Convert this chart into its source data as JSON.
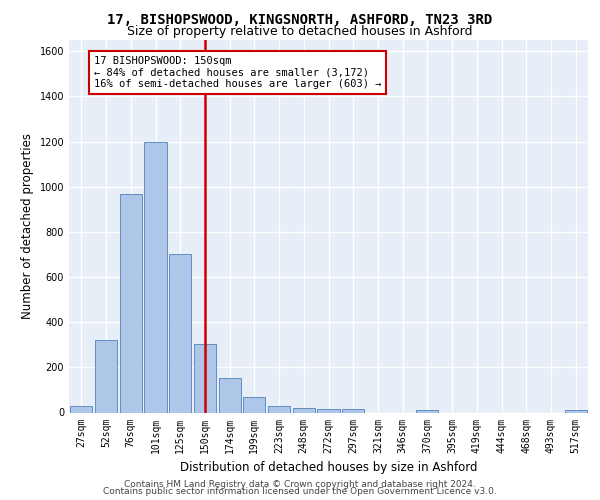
{
  "title1": "17, BISHOPSWOOD, KINGSNORTH, ASHFORD, TN23 3RD",
  "title2": "Size of property relative to detached houses in Ashford",
  "xlabel": "Distribution of detached houses by size in Ashford",
  "ylabel": "Number of detached properties",
  "categories": [
    "27sqm",
    "52sqm",
    "76sqm",
    "101sqm",
    "125sqm",
    "150sqm",
    "174sqm",
    "199sqm",
    "223sqm",
    "248sqm",
    "272sqm",
    "297sqm",
    "321sqm",
    "346sqm",
    "370sqm",
    "395sqm",
    "419sqm",
    "444sqm",
    "468sqm",
    "493sqm",
    "517sqm"
  ],
  "values": [
    30,
    320,
    970,
    1200,
    700,
    305,
    155,
    70,
    30,
    20,
    15,
    15,
    0,
    0,
    10,
    0,
    0,
    0,
    0,
    0,
    10
  ],
  "bar_color": "#aec6e8",
  "bar_edge_color": "#4f81bd",
  "vline_color": "#cc0000",
  "annotation_text": "17 BISHOPSWOOD: 150sqm\n← 84% of detached houses are smaller (3,172)\n16% of semi-detached houses are larger (603) →",
  "annotation_box_color": "#cc0000",
  "ylim": [
    0,
    1650
  ],
  "yticks": [
    0,
    200,
    400,
    600,
    800,
    1000,
    1200,
    1400,
    1600
  ],
  "footer1": "Contains HM Land Registry data © Crown copyright and database right 2024.",
  "footer2": "Contains public sector information licensed under the Open Government Licence v3.0.",
  "plot_bg_color": "#e8eef8",
  "grid_color": "#ffffff",
  "title1_fontsize": 10,
  "title2_fontsize": 9,
  "label_fontsize": 8.5,
  "tick_fontsize": 7,
  "footer_fontsize": 6.5,
  "annot_fontsize": 7.5
}
